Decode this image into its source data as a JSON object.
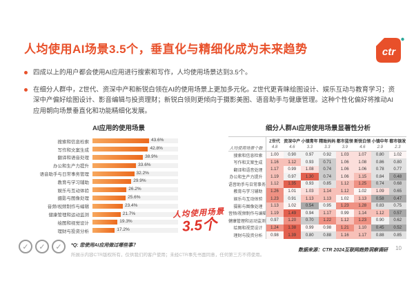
{
  "slide": {
    "title": "人均使用AI场景3.5个，垂直化与精细化成为未来趋势",
    "logo_text": "ctr",
    "bullets": [
      "四成以上的用户都会使用AI应用进行搜索和写作，人均使用场景达到3.5个。",
      "在细分人群中，Z世代、资深中产和新锐白领在AI的使用场景上更加多元化。Z世代更青睐绘图设计、娱乐互动与教育学习；资深中产偏好绘图设计、影音编辑与投资理财；新锐白领则更倾向于摄影美图、语音助手与健康管理。这种个性化偏好将推动AI应用朝向场景垂直化和功能精细化发展。",
      "四成以上的用户都会使用AI应用进行搜索和写作，人均使用场景达到3.5个。"
    ],
    "footnote_q": "*Q: 您使用AI应用做过哪些事？",
    "disclaimer": "所展示内容CTR版权所有，仅供我们的客户使用；未经CTR事先书面同意，任何第三方不得使用。",
    "data_source": "数据来源：CTR 2024互联网趋势洞察调研",
    "page_number": "10"
  },
  "colors": {
    "accent": "#e8502a",
    "annotation_red": "#e0342b",
    "bar_gradient_start": "#f7a85e",
    "bar_gradient_end": "#ec6a1e",
    "logo_teal": "#2ba89a"
  },
  "chart_data": [
    {
      "type": "bar",
      "title": "AI应用的使用场景",
      "orientation": "horizontal",
      "categories": [
        "搜索和信息检索",
        "写作和文案生成",
        "翻译和语音处理",
        "办公和生产力提升",
        "语音助手与日常事务管理",
        "教育与学习辅助",
        "娱乐与互动体验",
        "摄影与图像处理",
        "音频/视频制作与编辑",
        "健康管理和运动监测",
        "绘图和视觉设计",
        "理财与投资分析"
      ],
      "values": [
        43.6,
        42.8,
        38.9,
        33.6,
        32.2,
        29.9,
        26.2,
        25.6,
        23.4,
        21.7,
        19.3,
        17.2
      ],
      "value_suffix": "%",
      "xlim": [
        0,
        65
      ],
      "annotation": {
        "label": "人均使用场景",
        "value": "3.5个"
      }
    },
    {
      "type": "heatmap",
      "title": "细分人群AI应用使用场景显著性分析",
      "columns": [
        "Z世代",
        "资深中产",
        "小镇青年",
        "精致妈妈",
        "都市蓝领",
        "新锐白领",
        "小镇中年",
        "都市银发"
      ],
      "mean_row": {
        "label": "人均使用场景个数",
        "values": [
          4.8,
          4.6,
          3.3,
          3.3,
          3.9,
          4.6,
          2.9,
          2.3
        ]
      },
      "rows": [
        {
          "label": "搜索和信息检索",
          "values": [
            1.0,
            0.9,
            0.97,
            0.92,
            1.03,
            1.07,
            0.8,
            1.02
          ]
        },
        {
          "label": "写作和文案生成",
          "values": [
            1.16,
            1.12,
            0.93,
            0.71,
            1.06,
            1.08,
            0.86,
            0.8
          ]
        },
        {
          "label": "翻译和语音处理",
          "values": [
            1.17,
            0.99,
            1.08,
            0.74,
            1.06,
            1.06,
            0.78,
            0.77
          ]
        },
        {
          "label": "办公和生产力提升",
          "values": [
            1.19,
            0.97,
            1.3,
            0.74,
            1.06,
            1.15,
            0.84,
            0.48
          ]
        },
        {
          "label": "语音助手与日常事务管理",
          "values": [
            1.12,
            1.35,
            0.93,
            0.85,
            1.12,
            1.25,
            0.74,
            0.68
          ]
        },
        {
          "label": "教育与学习辅助",
          "values": [
            1.26,
            1.01,
            1.03,
            1.14,
            1.12,
            1.02,
            1.09,
            0.65
          ]
        },
        {
          "label": "娱乐与互动体验",
          "values": [
            1.23,
            0.91,
            1.13,
            1.13,
            1.02,
            1.13,
            0.58,
            0.47
          ]
        },
        {
          "label": "摄影与图像处理",
          "values": [
            1.13,
            1.02,
            0.54,
            0.95,
            1.23,
            1.28,
            0.83,
            0.75
          ]
        },
        {
          "label": "音频/视频制作与编辑",
          "values": [
            1.19,
            1.49,
            0.94,
            1.17,
            0.99,
            1.14,
            1.12,
            0.57
          ]
        },
        {
          "label": "健康管理和运动监测",
          "values": [
            0.97,
            1.2,
            0.7,
            1.22,
            1.12,
            1.23,
            0.9,
            0.62
          ]
        },
        {
          "label": "绘图和视觉设计",
          "values": [
            1.24,
            1.38,
            0.99,
            0.98,
            1.21,
            1.1,
            0.45,
            0.52
          ]
        },
        {
          "label": "理财与投资分析",
          "values": [
            0.98,
            1.39,
            0.8,
            0.88,
            1.16,
            1.17,
            0.88,
            0.85
          ]
        }
      ]
    }
  ]
}
